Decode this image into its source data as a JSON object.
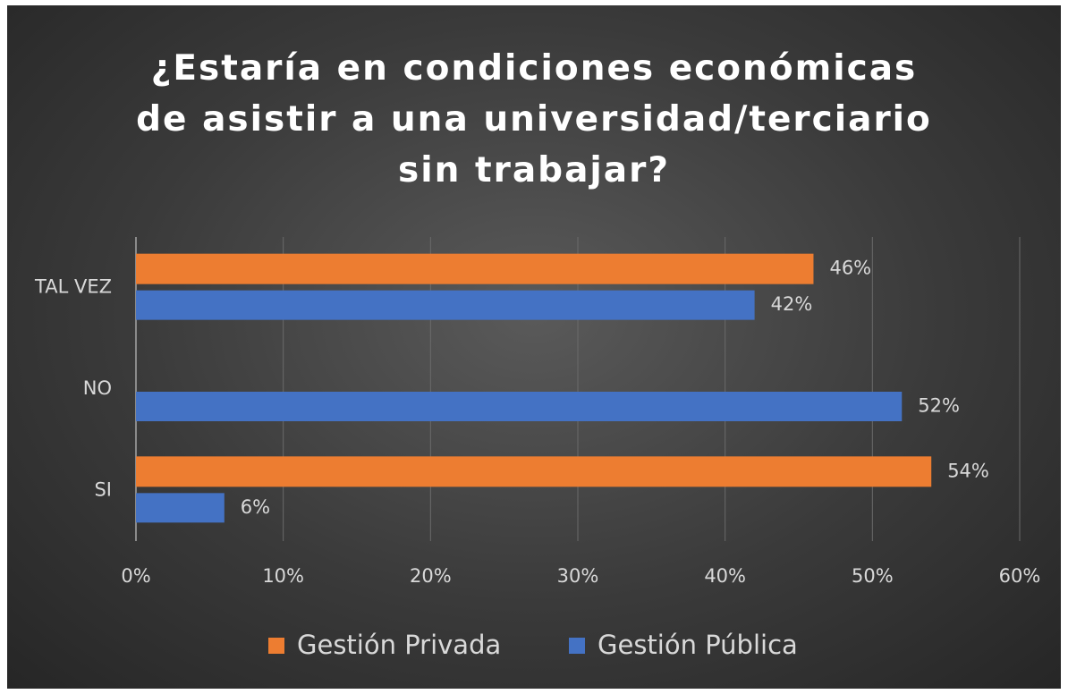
{
  "chart_data": {
    "type": "hbar",
    "title": "¿Estaría en condiciones económicas de asistir a una universidad/terciario sin trabajar?",
    "categories": [
      "TAL VEZ",
      "NO",
      "SI"
    ],
    "series": [
      {
        "name": "Gestión Privada",
        "color": "#ed7d31",
        "values": [
          46,
          null,
          54
        ],
        "value_labels": [
          "46%",
          null,
          "54%"
        ]
      },
      {
        "name": "Gestión Pública",
        "color": "#4472c4",
        "values": [
          42,
          52,
          6
        ],
        "value_labels": [
          "42%",
          "52%",
          "6%"
        ]
      }
    ],
    "xlim": [
      0,
      60
    ],
    "xticks": [
      {
        "value": 0,
        "label": "0%"
      },
      {
        "value": 10,
        "label": "10%"
      },
      {
        "value": 20,
        "label": "20%"
      },
      {
        "value": 30,
        "label": "30%"
      },
      {
        "value": 40,
        "label": "40%"
      },
      {
        "value": 50,
        "label": "50%"
      },
      {
        "value": 60,
        "label": "60%"
      }
    ],
    "grid": true,
    "legend": "bottom"
  }
}
